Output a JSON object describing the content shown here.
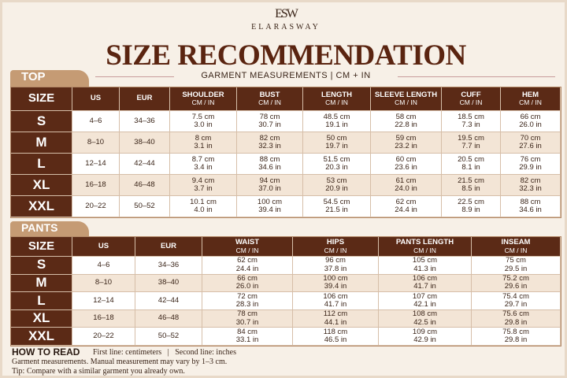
{
  "brand": {
    "monogram": "ESW",
    "name": "ELARASWAY"
  },
  "title": "SIZE RECOMMENDATION",
  "subtitle": "GARMENT MEASUREMENTS | CM + IN",
  "top": {
    "label": "TOP",
    "headers": [
      {
        "name": "SIZE"
      },
      {
        "name": "US"
      },
      {
        "name": "EUR"
      },
      {
        "name": "SHOULDER",
        "unit": "CM / IN"
      },
      {
        "name": "BUST",
        "unit": "CM / IN"
      },
      {
        "name": "LENGTH",
        "unit": "CM / IN"
      },
      {
        "name": "SLEEVE LENGTH",
        "unit": "CM / IN"
      },
      {
        "name": "CUFF",
        "unit": "CM / IN"
      },
      {
        "name": "HEM",
        "unit": "CM / IN"
      }
    ],
    "rows": [
      {
        "size": "S",
        "us": "4–6",
        "eur": "34–36",
        "cells": [
          [
            "7.5 cm",
            "3.0 in"
          ],
          [
            "78 cm",
            "30.7 in"
          ],
          [
            "48.5 cm",
            "19.1 in"
          ],
          [
            "58 cm",
            "22.8 in"
          ],
          [
            "18.5 cm",
            "7.3 in"
          ],
          [
            "66 cm",
            "26.0 in"
          ]
        ]
      },
      {
        "size": "M",
        "us": "8–10",
        "eur": "38–40",
        "cells": [
          [
            "8 cm",
            "3.1 in"
          ],
          [
            "82 cm",
            "32.3 in"
          ],
          [
            "50 cm",
            "19.7 in"
          ],
          [
            "59 cm",
            "23.2 in"
          ],
          [
            "19.5 cm",
            "7.7 in"
          ],
          [
            "70 cm",
            "27.6 in"
          ]
        ]
      },
      {
        "size": "L",
        "us": "12–14",
        "eur": "42–44",
        "cells": [
          [
            "8.7 cm",
            "3.4 in"
          ],
          [
            "88 cm",
            "34.6 in"
          ],
          [
            "51.5 cm",
            "20.3 in"
          ],
          [
            "60 cm",
            "23.6 in"
          ],
          [
            "20.5 cm",
            "8.1 in"
          ],
          [
            "76 cm",
            "29.9 in"
          ]
        ]
      },
      {
        "size": "XL",
        "us": "16–18",
        "eur": "46–48",
        "cells": [
          [
            "9.4 cm",
            "3.7 in"
          ],
          [
            "94 cm",
            "37.0 in"
          ],
          [
            "53 cm",
            "20.9 in"
          ],
          [
            "61 cm",
            "24.0 in"
          ],
          [
            "21.5 cm",
            "8.5 in"
          ],
          [
            "82 cm",
            "32.3 in"
          ]
        ]
      },
      {
        "size": "XXL",
        "us": "20–22",
        "eur": "50–52",
        "cells": [
          [
            "10.1 cm",
            "4.0 in"
          ],
          [
            "100 cm",
            "39.4 in"
          ],
          [
            "54.5 cm",
            "21.5 in"
          ],
          [
            "62 cm",
            "24.4 in"
          ],
          [
            "22.5 cm",
            "8.9 in"
          ],
          [
            "88 cm",
            "34.6 in"
          ]
        ]
      }
    ]
  },
  "pants": {
    "label": "PANTS",
    "headers": [
      {
        "name": "SIZE"
      },
      {
        "name": "US"
      },
      {
        "name": "EUR"
      },
      {
        "name": "WAIST",
        "unit": "CM / IN"
      },
      {
        "name": "HIPS",
        "unit": "CM / IN"
      },
      {
        "name": "PANTS LENGTH",
        "unit": "CM / IN"
      },
      {
        "name": "INSEAM",
        "unit": "CM / IN"
      }
    ],
    "rows": [
      {
        "size": "S",
        "us": "4–6",
        "eur": "34–36",
        "cells": [
          [
            "62 cm",
            "24.4 in"
          ],
          [
            "96 cm",
            "37.8 in"
          ],
          [
            "105 cm",
            "41.3 in"
          ],
          [
            "75 cm",
            "29.5 in"
          ]
        ]
      },
      {
        "size": "M",
        "us": "8–10",
        "eur": "38–40",
        "cells": [
          [
            "66 cm",
            "26.0 in"
          ],
          [
            "100 cm",
            "39.4 in"
          ],
          [
            "106 cm",
            "41.7 in"
          ],
          [
            "75.2 cm",
            "29.6 in"
          ]
        ]
      },
      {
        "size": "L",
        "us": "12–14",
        "eur": "42–44",
        "cells": [
          [
            "72 cm",
            "28.3 in"
          ],
          [
            "106 cm",
            "41.7 in"
          ],
          [
            "107 cm",
            "42.1 in"
          ],
          [
            "75.4 cm",
            "29.7 in"
          ]
        ]
      },
      {
        "size": "XL",
        "us": "16–18",
        "eur": "46–48",
        "cells": [
          [
            "78 cm",
            "30.7 in"
          ],
          [
            "112 cm",
            "44.1 in"
          ],
          [
            "108 cm",
            "42.5 in"
          ],
          [
            "75.6 cm",
            "29.8 in"
          ]
        ]
      },
      {
        "size": "XXL",
        "us": "20–22",
        "eur": "50–52",
        "cells": [
          [
            "84 cm",
            "33.1 in"
          ],
          [
            "118 cm",
            "46.5 in"
          ],
          [
            "109 cm",
            "42.9 in"
          ],
          [
            "75.8 cm",
            "29.8 in"
          ]
        ]
      }
    ]
  },
  "how_to_read": {
    "title": "HOW TO READ",
    "first_line": "First line: centimeters",
    "separator": "|",
    "second_line": "Second line: inches",
    "notes": [
      "Garment measurements. Manual measurement may vary by 1–3 cm.",
      "Tip: Compare with a similar garment you already own."
    ]
  }
}
